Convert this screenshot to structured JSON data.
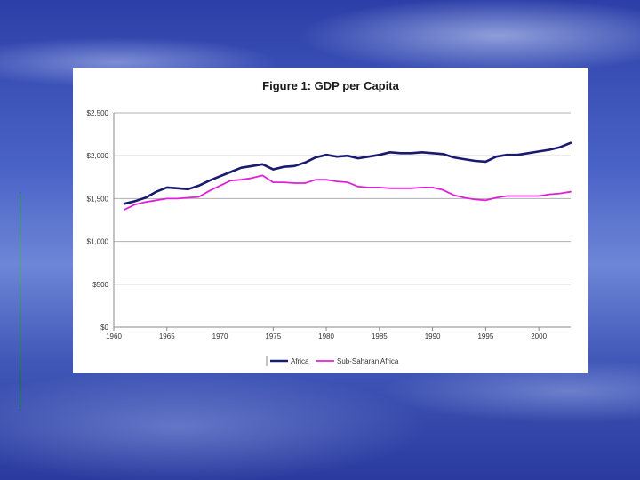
{
  "slide": {
    "accent_line_color": "#39b54a"
  },
  "chart_data": {
    "type": "line",
    "title": "Figure 1: GDP per Capita",
    "xlabel": "",
    "ylabel": "",
    "xlim": [
      1960,
      2003
    ],
    "ylim": [
      0,
      2500
    ],
    "x_ticks": [
      1960,
      1965,
      1970,
      1975,
      1980,
      1985,
      1990,
      1995,
      2000
    ],
    "x_tick_labels": [
      "1960",
      "1965",
      "1970",
      "1975",
      "1980",
      "1985",
      "1990",
      "1995",
      "2000"
    ],
    "y_ticks": [
      0,
      500,
      1000,
      1500,
      2000,
      2500
    ],
    "y_tick_labels": [
      "$0",
      "$500",
      "$1,000",
      "$1,500",
      "$2,000",
      "$2,500"
    ],
    "grid": "horizontal",
    "legend_position": "bottom",
    "x": [
      1961,
      1962,
      1963,
      1964,
      1965,
      1966,
      1967,
      1968,
      1969,
      1970,
      1971,
      1972,
      1973,
      1974,
      1975,
      1976,
      1977,
      1978,
      1979,
      1980,
      1981,
      1982,
      1983,
      1984,
      1985,
      1986,
      1987,
      1988,
      1989,
      1990,
      1991,
      1992,
      1993,
      1994,
      1995,
      1996,
      1997,
      1998,
      1999,
      2000,
      2001,
      2002,
      2003
    ],
    "series": [
      {
        "name": "Africa",
        "color": "#1a1a6e",
        "values": [
          1440,
          1470,
          1510,
          1580,
          1630,
          1620,
          1610,
          1650,
          1710,
          1760,
          1810,
          1860,
          1880,
          1900,
          1840,
          1870,
          1880,
          1920,
          1980,
          2010,
          1990,
          2000,
          1970,
          1990,
          2010,
          2040,
          2030,
          2030,
          2040,
          2030,
          2020,
          1980,
          1960,
          1940,
          1930,
          1990,
          2010,
          2010,
          2030,
          2050,
          2070,
          2100,
          2150
        ]
      },
      {
        "name": "Sub-Saharan Africa",
        "color": "#e020d8",
        "values": [
          1370,
          1430,
          1460,
          1480,
          1500,
          1500,
          1510,
          1520,
          1590,
          1650,
          1710,
          1720,
          1740,
          1770,
          1690,
          1690,
          1680,
          1680,
          1720,
          1720,
          1700,
          1690,
          1640,
          1630,
          1630,
          1620,
          1620,
          1620,
          1630,
          1630,
          1600,
          1540,
          1510,
          1490,
          1480,
          1510,
          1530,
          1530,
          1530,
          1530,
          1550,
          1560,
          1580
        ]
      }
    ]
  }
}
